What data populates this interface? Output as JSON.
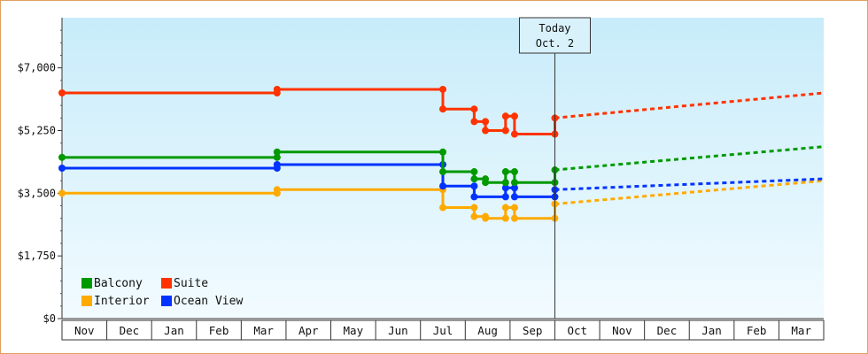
{
  "chart_data": {
    "type": "line",
    "title": "",
    "xlabel": "",
    "ylabel": "",
    "ylim": [
      0,
      8400
    ],
    "y_ticks": [
      {
        "value": 0,
        "label": "$0"
      },
      {
        "value": 1750,
        "label": "$1,750"
      },
      {
        "value": 3500,
        "label": "$3,500"
      },
      {
        "value": 5250,
        "label": "$5,250"
      },
      {
        "value": 7000,
        "label": "$7,000"
      }
    ],
    "x_months": [
      "Nov",
      "Dec",
      "Jan",
      "Feb",
      "Mar",
      "Apr",
      "May",
      "Jun",
      "Jul",
      "Aug",
      "Sep",
      "Oct",
      "Nov",
      "Dec",
      "Jan",
      "Feb",
      "Mar"
    ],
    "today_marker": {
      "line1": "Today",
      "line2": "Oct. 2",
      "month_pos": 11.0
    },
    "legend": {
      "position": "bottom-left"
    },
    "colors": {
      "plot_top": "#c8ecfa",
      "plot_bottom": "#f2fbff",
      "frame": "#e0a060"
    },
    "series": [
      {
        "name": "Suite",
        "color": "#ff3300",
        "points": [
          [
            0,
            6300
          ],
          [
            4.8,
            6300
          ],
          [
            4.8,
            6400
          ],
          [
            8.5,
            6400
          ],
          [
            8.5,
            5850
          ],
          [
            9.2,
            5850
          ],
          [
            9.2,
            5500
          ],
          [
            9.45,
            5500
          ],
          [
            9.45,
            5250
          ],
          [
            9.9,
            5250
          ],
          [
            9.9,
            5650
          ],
          [
            10.1,
            5650
          ],
          [
            10.1,
            5150
          ],
          [
            11.0,
            5150
          ],
          [
            11.0,
            5600
          ]
        ],
        "projection": [
          [
            11.0,
            5600
          ],
          [
            17.0,
            6300
          ]
        ]
      },
      {
        "name": "Balcony",
        "color": "#009900",
        "points": [
          [
            0,
            4500
          ],
          [
            4.8,
            4500
          ],
          [
            4.8,
            4650
          ],
          [
            8.5,
            4650
          ],
          [
            8.5,
            4100
          ],
          [
            9.2,
            4100
          ],
          [
            9.2,
            3900
          ],
          [
            9.45,
            3900
          ],
          [
            9.45,
            3800
          ],
          [
            9.9,
            3800
          ],
          [
            9.9,
            4100
          ],
          [
            10.1,
            4100
          ],
          [
            10.1,
            3800
          ],
          [
            11.0,
            3800
          ],
          [
            11.0,
            4150
          ]
        ],
        "projection": [
          [
            11.0,
            4150
          ],
          [
            17.0,
            4800
          ]
        ]
      },
      {
        "name": "Ocean View",
        "color": "#0033ff",
        "points": [
          [
            0,
            4200
          ],
          [
            4.8,
            4200
          ],
          [
            4.8,
            4300
          ],
          [
            8.5,
            4300
          ],
          [
            8.5,
            3700
          ],
          [
            9.2,
            3700
          ],
          [
            9.2,
            3400
          ],
          [
            9.9,
            3400
          ],
          [
            9.9,
            3650
          ],
          [
            10.1,
            3650
          ],
          [
            10.1,
            3400
          ],
          [
            11.0,
            3400
          ],
          [
            11.0,
            3600
          ]
        ],
        "projection": [
          [
            11.0,
            3600
          ],
          [
            17.0,
            3900
          ]
        ]
      },
      {
        "name": "Interior",
        "color": "#ffaa00",
        "points": [
          [
            0,
            3500
          ],
          [
            4.8,
            3500
          ],
          [
            4.8,
            3600
          ],
          [
            8.5,
            3600
          ],
          [
            8.5,
            3100
          ],
          [
            9.2,
            3100
          ],
          [
            9.2,
            2850
          ],
          [
            9.45,
            2850
          ],
          [
            9.45,
            2800
          ],
          [
            9.9,
            2800
          ],
          [
            9.9,
            3100
          ],
          [
            10.1,
            3100
          ],
          [
            10.1,
            2800
          ],
          [
            11.0,
            2800
          ],
          [
            11.0,
            3200
          ]
        ],
        "projection": [
          [
            11.0,
            3200
          ],
          [
            17.0,
            3850
          ]
        ]
      }
    ],
    "legend_order": [
      "Balcony",
      "Suite",
      "Interior",
      "Ocean View"
    ]
  }
}
